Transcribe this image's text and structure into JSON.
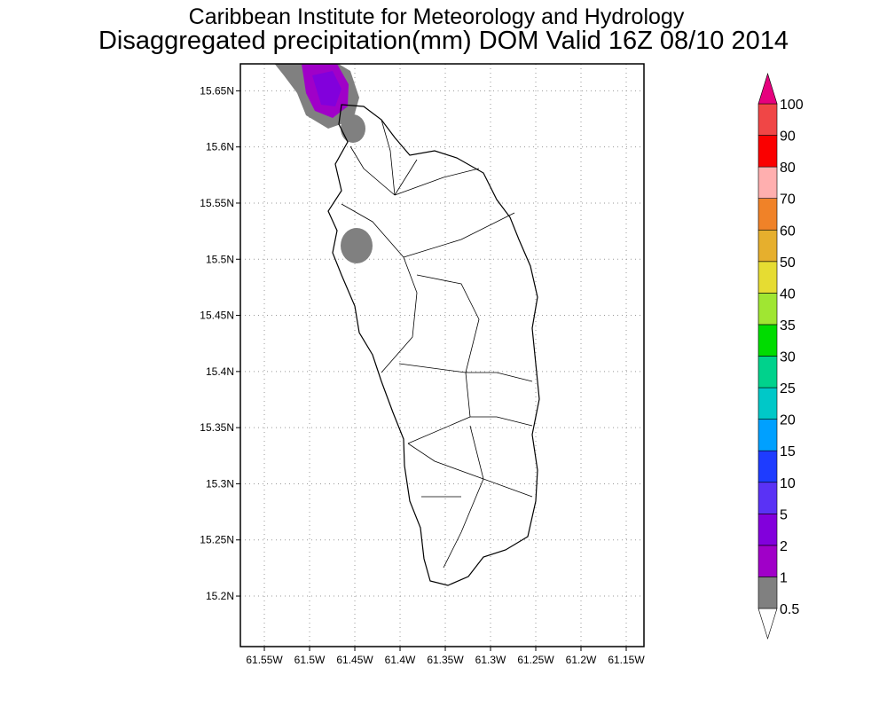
{
  "title": "Caribbean Institute for Meteorology and Hydrology",
  "subtitle": "Disaggregated precipitation(mm) DOM Valid 16Z 08/10 2014",
  "xlim": [
    -61.5765,
    -61.1304
  ],
  "ylim": [
    15.155,
    15.674
  ],
  "grid": true,
  "xticks": [
    {
      "value": -61.55,
      "label": "61.55W"
    },
    {
      "value": -61.5,
      "label": "61.5W"
    },
    {
      "value": -61.45,
      "label": "61.45W"
    },
    {
      "value": -61.4,
      "label": "61.4W"
    },
    {
      "value": -61.35,
      "label": "61.35W"
    },
    {
      "value": -61.3,
      "label": "61.3W"
    },
    {
      "value": -61.25,
      "label": "61.25W"
    },
    {
      "value": -61.2,
      "label": "61.2W"
    },
    {
      "value": -61.15,
      "label": "61.15W"
    }
  ],
  "yticks": [
    {
      "value": 15.2,
      "label": "15.2N"
    },
    {
      "value": 15.25,
      "label": "15.25N"
    },
    {
      "value": 15.3,
      "label": "15.3N"
    },
    {
      "value": 15.35,
      "label": "15.35N"
    },
    {
      "value": 15.4,
      "label": "15.4N"
    },
    {
      "value": 15.45,
      "label": "15.45N"
    },
    {
      "value": 15.5,
      "label": "15.5N"
    },
    {
      "value": 15.55,
      "label": "15.55N"
    },
    {
      "value": 15.6,
      "label": "15.6N"
    },
    {
      "value": 15.65,
      "label": "15.65N"
    }
  ],
  "colorbar": {
    "levels": [
      0.5,
      1,
      2,
      5,
      10,
      15,
      20,
      25,
      30,
      35,
      40,
      50,
      60,
      70,
      80,
      90,
      100
    ],
    "colors": [
      "#ffffff",
      "#808080",
      "#a000c8",
      "#8200dc",
      "#5a32f5",
      "#1e3cff",
      "#00a0ff",
      "#00c8c8",
      "#00d28c",
      "#00dc00",
      "#a0e632",
      "#e6dc32",
      "#e6af2d",
      "#f08228",
      "#ffafaf",
      "#fa0000",
      "#f04646",
      "#e6007e"
    ]
  }
}
